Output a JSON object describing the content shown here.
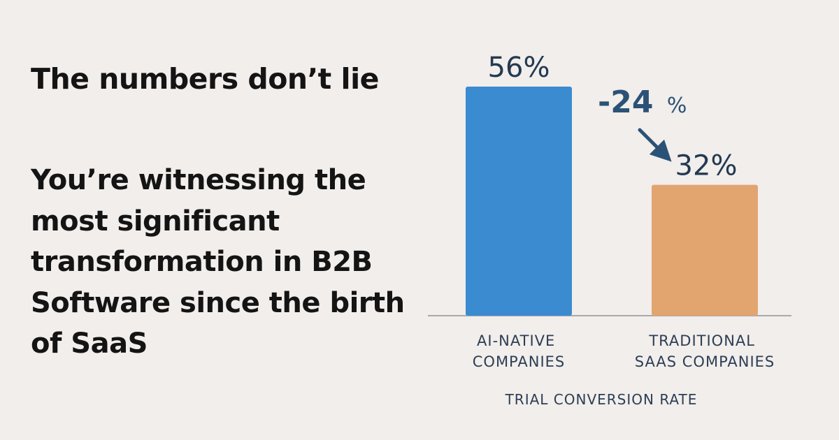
{
  "headline": "The numbers don’t lie",
  "subline": "You’re witnessing the most significant transformation in B2B Software since the birth of SaaS",
  "colors": {
    "background": "#f2eeeb",
    "ai_bar": "#3b8bd0",
    "traditional_bar": "#e2a56f",
    "axis": "#a9a9ad",
    "text": "#2c3e55",
    "diff": "#2b5276"
  },
  "chart_data": {
    "type": "bar",
    "title": "",
    "xlabel": "TRIAL CONVERSION RATE",
    "ylabel": "",
    "categories": [
      [
        "AI-NATIVE",
        "COMPANIES"
      ],
      [
        "TRADITIONAL",
        "SAAS COMPANIES"
      ]
    ],
    "values": [
      56,
      32
    ],
    "data_labels": [
      "56%",
      "32%"
    ],
    "ylim": [
      0,
      60
    ],
    "grid": false,
    "annotation": {
      "text": "-24",
      "suffix": "%",
      "arrow": "down-right-arrow-icon"
    }
  }
}
